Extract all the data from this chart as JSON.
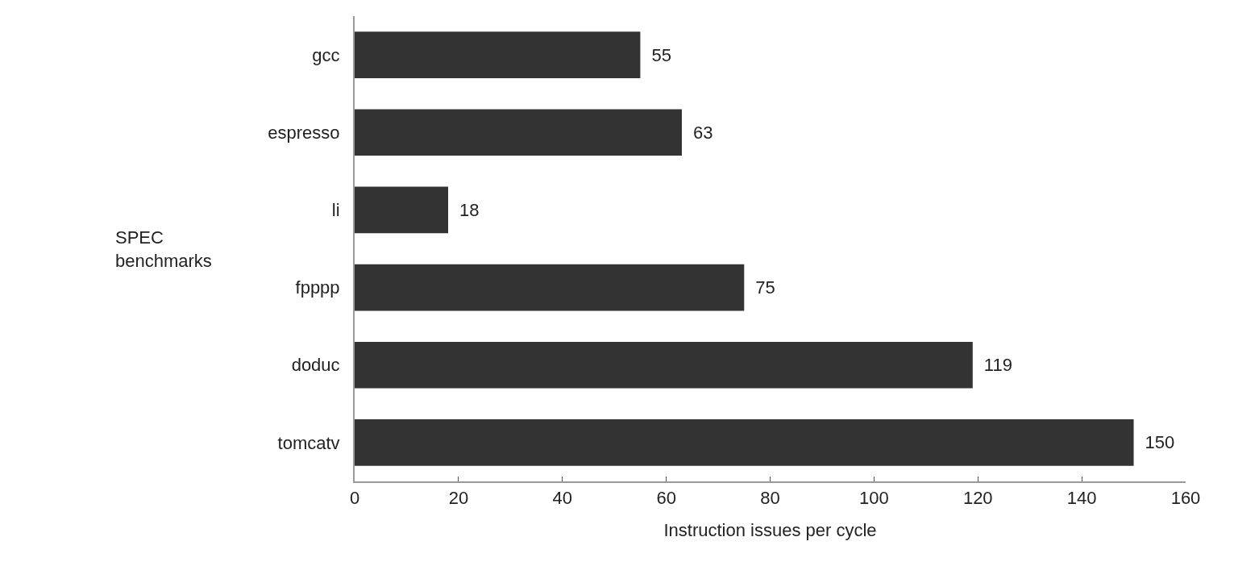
{
  "chart_data": {
    "type": "bar",
    "orientation": "horizontal",
    "xlabel": "Instruction issues per cycle",
    "ylabel": "SPEC benchmarks",
    "categories": [
      "gcc",
      "espresso",
      "li",
      "fpppp",
      "doduc",
      "tomcatv"
    ],
    "values": [
      55,
      63,
      18,
      75,
      119,
      150
    ],
    "color": "#333333",
    "data_labels": true,
    "xlim": [
      0,
      160
    ],
    "xticks": [
      0,
      20,
      40,
      60,
      80,
      100,
      120,
      140,
      160
    ],
    "grid": false
  }
}
